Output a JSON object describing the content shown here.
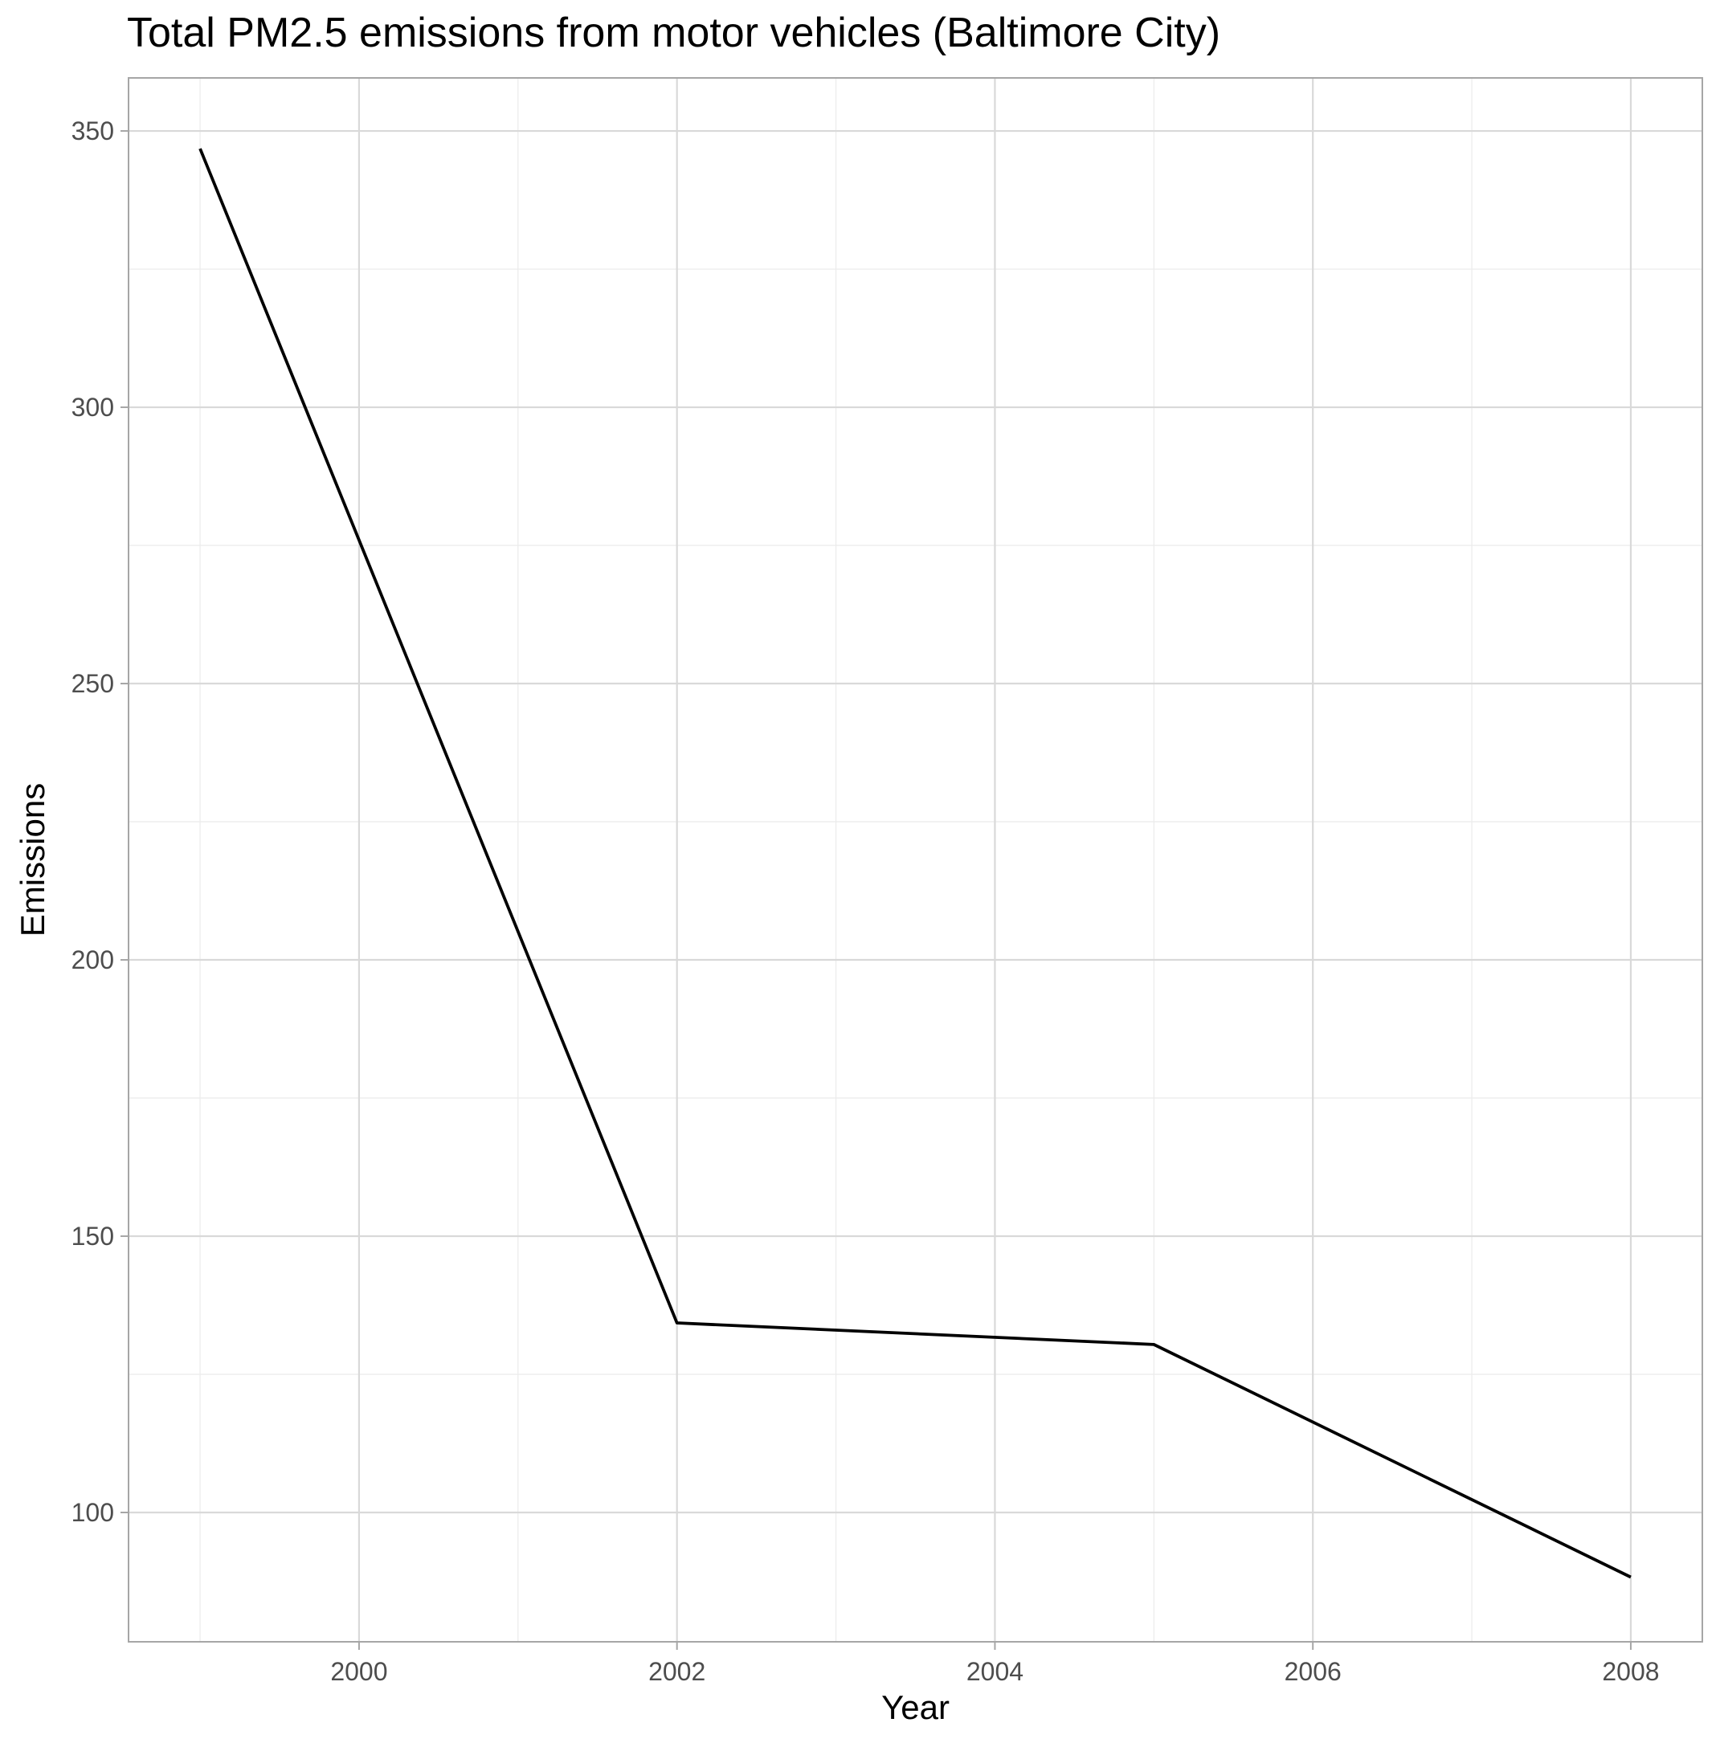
{
  "chart_data": {
    "type": "line",
    "title": "Total PM2.5 emissions from motor vehicles (Baltimore City)",
    "xlabel": "Year",
    "ylabel": "Emissions",
    "x": [
      1999,
      2002,
      2005,
      2008
    ],
    "series": [
      {
        "values": [
          346.8,
          134.3,
          130.4,
          88.3
        ]
      }
    ],
    "xlim": [
      1998.55,
      2008.45
    ],
    "ylim": [
      76.6,
      359.6
    ],
    "x_ticks": [
      2000,
      2002,
      2004,
      2006,
      2008
    ],
    "x_tick_labels": [
      "2000",
      "2002",
      "2004",
      "2006",
      "2008"
    ],
    "x_minor_ticks": [
      1999,
      2001,
      2003,
      2005,
      2007
    ],
    "y_ticks": [
      100,
      150,
      200,
      250,
      300,
      350
    ],
    "y_tick_labels": [
      "100",
      "150",
      "200",
      "250",
      "300",
      "350"
    ],
    "y_minor_ticks": [
      125,
      175,
      225,
      275,
      325
    ],
    "grid": true,
    "legend": "none",
    "line_color": "#000000"
  }
}
